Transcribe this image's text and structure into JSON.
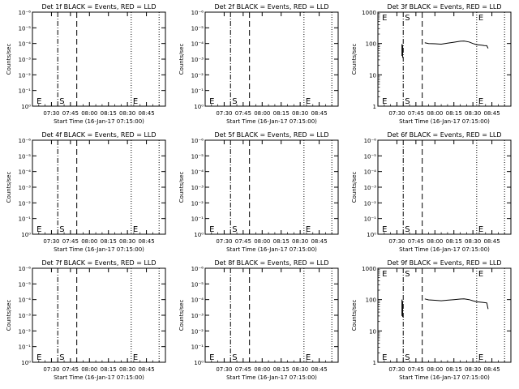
{
  "chart_data": [
    {
      "type": "line",
      "title": "Det 1f BLACK = Events, RED = LLD",
      "xlabel": "Start Time (16-Jan-17 07:15:00)",
      "ylabel": "Counts/sec",
      "y_scale": "log",
      "y_ticks": [
        "10⁰",
        "10⁻¹",
        "10⁻²",
        "10⁻³",
        "10⁻⁴",
        "10⁻⁵",
        "10⁻⁶"
      ],
      "x_ticks": [
        "07:30",
        "07:45",
        "08:00",
        "08:15",
        "08:30",
        "08:45"
      ],
      "ylim": [
        -6,
        0
      ],
      "xlim_min": [
        0,
        105
      ],
      "x_ticks_min": [
        15,
        30,
        45,
        60,
        75,
        90
      ],
      "markers": [
        {
          "label": "E",
          "x_min": 2
        },
        {
          "label": "S",
          "x_min": 20
        },
        {
          "label": "E",
          "x_min": 78
        }
      ],
      "vlines": [
        {
          "style": "dashdot",
          "x_min": 20
        },
        {
          "style": "dashed",
          "x_min": 35
        },
        {
          "style": "dotted",
          "x_min": 78
        },
        {
          "style": "dotted",
          "x_min": 100
        }
      ],
      "series": []
    },
    {
      "type": "line",
      "title": "Det 2f BLACK = Events, RED = LLD",
      "xlabel": "Start Time (16-Jan-17 07:15:00)",
      "ylabel": "Counts/sec",
      "y_scale": "log",
      "y_ticks": [
        "10⁰",
        "10⁻¹",
        "10⁻²",
        "10⁻³",
        "10⁻⁴",
        "10⁻⁵",
        "10⁻⁶"
      ],
      "x_ticks": [
        "07:30",
        "07:45",
        "08:00",
        "08:15",
        "08:30",
        "08:45"
      ],
      "ylim": [
        -6,
        0
      ],
      "xlim_min": [
        0,
        105
      ],
      "x_ticks_min": [
        15,
        30,
        45,
        60,
        75,
        90
      ],
      "markers": [
        {
          "label": "E",
          "x_min": 2
        },
        {
          "label": "S",
          "x_min": 20
        },
        {
          "label": "E",
          "x_min": 78
        }
      ],
      "vlines": [
        {
          "style": "dashdot",
          "x_min": 20
        },
        {
          "style": "dashed",
          "x_min": 35
        },
        {
          "style": "dotted",
          "x_min": 78
        },
        {
          "style": "dotted",
          "x_min": 100
        }
      ],
      "series": []
    },
    {
      "type": "line",
      "title": "Det 3f BLACK = Events, RED = LLD",
      "xlabel": "Start Time (16-Jan-17 07:15:00)",
      "ylabel": "Counts/sec",
      "y_scale": "log",
      "y_ticks": [
        "1000",
        "100",
        "10",
        "1"
      ],
      "x_ticks": [
        "07:30",
        "07:45",
        "08:00",
        "08:15",
        "08:30",
        "08:45"
      ],
      "ylim": [
        1,
        1000
      ],
      "xlim_min": [
        0,
        105
      ],
      "x_ticks_min": [
        15,
        30,
        45,
        60,
        75,
        90
      ],
      "markers": [
        {
          "label": "E",
          "x_min": 2
        },
        {
          "label": "S",
          "x_min": 20
        },
        {
          "label": "E",
          "x_min": 78
        }
      ],
      "vlines": [
        {
          "style": "dashdot",
          "x_min": 20
        },
        {
          "style": "dashed",
          "x_min": 35
        },
        {
          "style": "dotted",
          "x_min": 78
        },
        {
          "style": "dotted",
          "x_min": 100
        }
      ],
      "series": [
        {
          "x": [
            19,
            19,
            19.5,
            19.5
          ],
          "y": [
            40,
            95,
            35,
            90
          ]
        },
        {
          "x": [
            37,
            40,
            45,
            50,
            55,
            60,
            65,
            68,
            72,
            75,
            78,
            82,
            84,
            86,
            87
          ],
          "y": [
            105,
            100,
            98,
            95,
            102,
            110,
            118,
            120,
            112,
            100,
            92,
            88,
            86,
            85,
            70
          ]
        }
      ]
    },
    {
      "type": "line",
      "title": "Det 4f BLACK = Events, RED = LLD",
      "xlabel": "Start Time (16-Jan-17 07:15:00)",
      "ylabel": "Counts/sec",
      "y_scale": "log",
      "y_ticks": [
        "10⁰",
        "10⁻¹",
        "10⁻²",
        "10⁻³",
        "10⁻⁴",
        "10⁻⁵",
        "10⁻⁶"
      ],
      "x_ticks": [
        "07:30",
        "07:45",
        "08:00",
        "08:15",
        "08:30",
        "08:45"
      ],
      "ylim": [
        -6,
        0
      ],
      "xlim_min": [
        0,
        105
      ],
      "x_ticks_min": [
        15,
        30,
        45,
        60,
        75,
        90
      ],
      "markers": [
        {
          "label": "E",
          "x_min": 2
        },
        {
          "label": "S",
          "x_min": 20
        },
        {
          "label": "E",
          "x_min": 78
        }
      ],
      "vlines": [
        {
          "style": "dashdot",
          "x_min": 20
        },
        {
          "style": "dashed",
          "x_min": 35
        },
        {
          "style": "dotted",
          "x_min": 78
        },
        {
          "style": "dotted",
          "x_min": 100
        }
      ],
      "series": []
    },
    {
      "type": "line",
      "title": "Det 5f BLACK = Events, RED = LLD",
      "xlabel": "Start Time (16-Jan-17 07:15:00)",
      "ylabel": "Counts/sec",
      "y_scale": "log",
      "y_ticks": [
        "10⁰",
        "10⁻¹",
        "10⁻²",
        "10⁻³",
        "10⁻⁴",
        "10⁻⁵",
        "10⁻⁶"
      ],
      "x_ticks": [
        "07:30",
        "07:45",
        "08:00",
        "08:15",
        "08:30",
        "08:45"
      ],
      "ylim": [
        -6,
        0
      ],
      "xlim_min": [
        0,
        105
      ],
      "x_ticks_min": [
        15,
        30,
        45,
        60,
        75,
        90
      ],
      "markers": [
        {
          "label": "E",
          "x_min": 2
        },
        {
          "label": "S",
          "x_min": 20
        },
        {
          "label": "E",
          "x_min": 78
        }
      ],
      "vlines": [
        {
          "style": "dashdot",
          "x_min": 20
        },
        {
          "style": "dashed",
          "x_min": 35
        },
        {
          "style": "dotted",
          "x_min": 78
        },
        {
          "style": "dotted",
          "x_min": 100
        }
      ],
      "series": []
    },
    {
      "type": "line",
      "title": "Det 6f BLACK = Events, RED = LLD",
      "xlabel": "Start Time (16-Jan-17 07:15:00)",
      "ylabel": "Counts/sec",
      "y_scale": "log",
      "y_ticks": [
        "10⁰",
        "10⁻¹",
        "10⁻²",
        "10⁻³",
        "10⁻⁴",
        "10⁻⁵",
        "10⁻⁶"
      ],
      "x_ticks": [
        "07:30",
        "07:45",
        "08:00",
        "08:15",
        "08:30",
        "08:45"
      ],
      "ylim": [
        -6,
        0
      ],
      "xlim_min": [
        0,
        105
      ],
      "x_ticks_min": [
        15,
        30,
        45,
        60,
        75,
        90
      ],
      "markers": [
        {
          "label": "E",
          "x_min": 2
        },
        {
          "label": "S",
          "x_min": 20
        },
        {
          "label": "E",
          "x_min": 78
        }
      ],
      "vlines": [
        {
          "style": "dashdot",
          "x_min": 20
        },
        {
          "style": "dashed",
          "x_min": 35
        },
        {
          "style": "dotted",
          "x_min": 78
        },
        {
          "style": "dotted",
          "x_min": 100
        }
      ],
      "series": []
    },
    {
      "type": "line",
      "title": "Det 7f BLACK = Events, RED = LLD",
      "xlabel": "Start Time (16-Jan-17 07:15:00)",
      "ylabel": "Counts/sec",
      "y_scale": "log",
      "y_ticks": [
        "10⁰",
        "10⁻¹",
        "10⁻²",
        "10⁻³",
        "10⁻⁴",
        "10⁻⁵",
        "10⁻⁶"
      ],
      "x_ticks": [
        "07:30",
        "07:45",
        "08:00",
        "08:15",
        "08:30",
        "08:45"
      ],
      "ylim": [
        -6,
        0
      ],
      "xlim_min": [
        0,
        105
      ],
      "x_ticks_min": [
        15,
        30,
        45,
        60,
        75,
        90
      ],
      "markers": [
        {
          "label": "E",
          "x_min": 2
        },
        {
          "label": "S",
          "x_min": 20
        },
        {
          "label": "E",
          "x_min": 78
        }
      ],
      "vlines": [
        {
          "style": "dashdot",
          "x_min": 20
        },
        {
          "style": "dashed",
          "x_min": 35
        },
        {
          "style": "dotted",
          "x_min": 78
        },
        {
          "style": "dotted",
          "x_min": 100
        }
      ],
      "series": []
    },
    {
      "type": "line",
      "title": "Det 8f BLACK = Events, RED = LLD",
      "xlabel": "Start Time (16-Jan-17 07:15:00)",
      "ylabel": "Counts/sec",
      "y_scale": "log",
      "y_ticks": [
        "10⁰",
        "10⁻¹",
        "10⁻²",
        "10⁻³",
        "10⁻⁴",
        "10⁻⁵",
        "10⁻⁶"
      ],
      "x_ticks": [
        "07:30",
        "07:45",
        "08:00",
        "08:15",
        "08:30",
        "08:45"
      ],
      "ylim": [
        -6,
        0
      ],
      "xlim_min": [
        0,
        105
      ],
      "x_ticks_min": [
        15,
        30,
        45,
        60,
        75,
        90
      ],
      "markers": [
        {
          "label": "E",
          "x_min": 2
        },
        {
          "label": "S",
          "x_min": 20
        },
        {
          "label": "E",
          "x_min": 78
        }
      ],
      "vlines": [
        {
          "style": "dashdot",
          "x_min": 20
        },
        {
          "style": "dashed",
          "x_min": 35
        },
        {
          "style": "dotted",
          "x_min": 78
        },
        {
          "style": "dotted",
          "x_min": 100
        }
      ],
      "series": []
    },
    {
      "type": "line",
      "title": "Det 9f BLACK = Events, RED = LLD",
      "xlabel": "Start Time (16-Jan-17 07:15:00)",
      "ylabel": "Counts/sec",
      "y_scale": "log",
      "y_ticks": [
        "1000",
        "100",
        "10",
        "1"
      ],
      "x_ticks": [
        "07:30",
        "07:45",
        "08:00",
        "08:15",
        "08:30",
        "08:45"
      ],
      "ylim": [
        1,
        1000
      ],
      "xlim_min": [
        0,
        105
      ],
      "x_ticks_min": [
        15,
        30,
        45,
        60,
        75,
        90
      ],
      "markers": [
        {
          "label": "E",
          "x_min": 2
        },
        {
          "label": "S",
          "x_min": 20
        },
        {
          "label": "E",
          "x_min": 78
        }
      ],
      "vlines": [
        {
          "style": "dashdot",
          "x_min": 20
        },
        {
          "style": "dashed",
          "x_min": 35
        },
        {
          "style": "dotted",
          "x_min": 78
        },
        {
          "style": "dotted",
          "x_min": 100
        }
      ],
      "series": [
        {
          "x": [
            19,
            19,
            19.5,
            19.5
          ],
          "y": [
            30,
            100,
            28,
            90
          ]
        },
        {
          "x": [
            37,
            40,
            45,
            50,
            55,
            60,
            65,
            68,
            72,
            75,
            78,
            82,
            84,
            86,
            87
          ],
          "y": [
            105,
            98,
            95,
            92,
            96,
            100,
            104,
            105,
            100,
            92,
            85,
            82,
            80,
            78,
            50
          ]
        }
      ]
    }
  ]
}
